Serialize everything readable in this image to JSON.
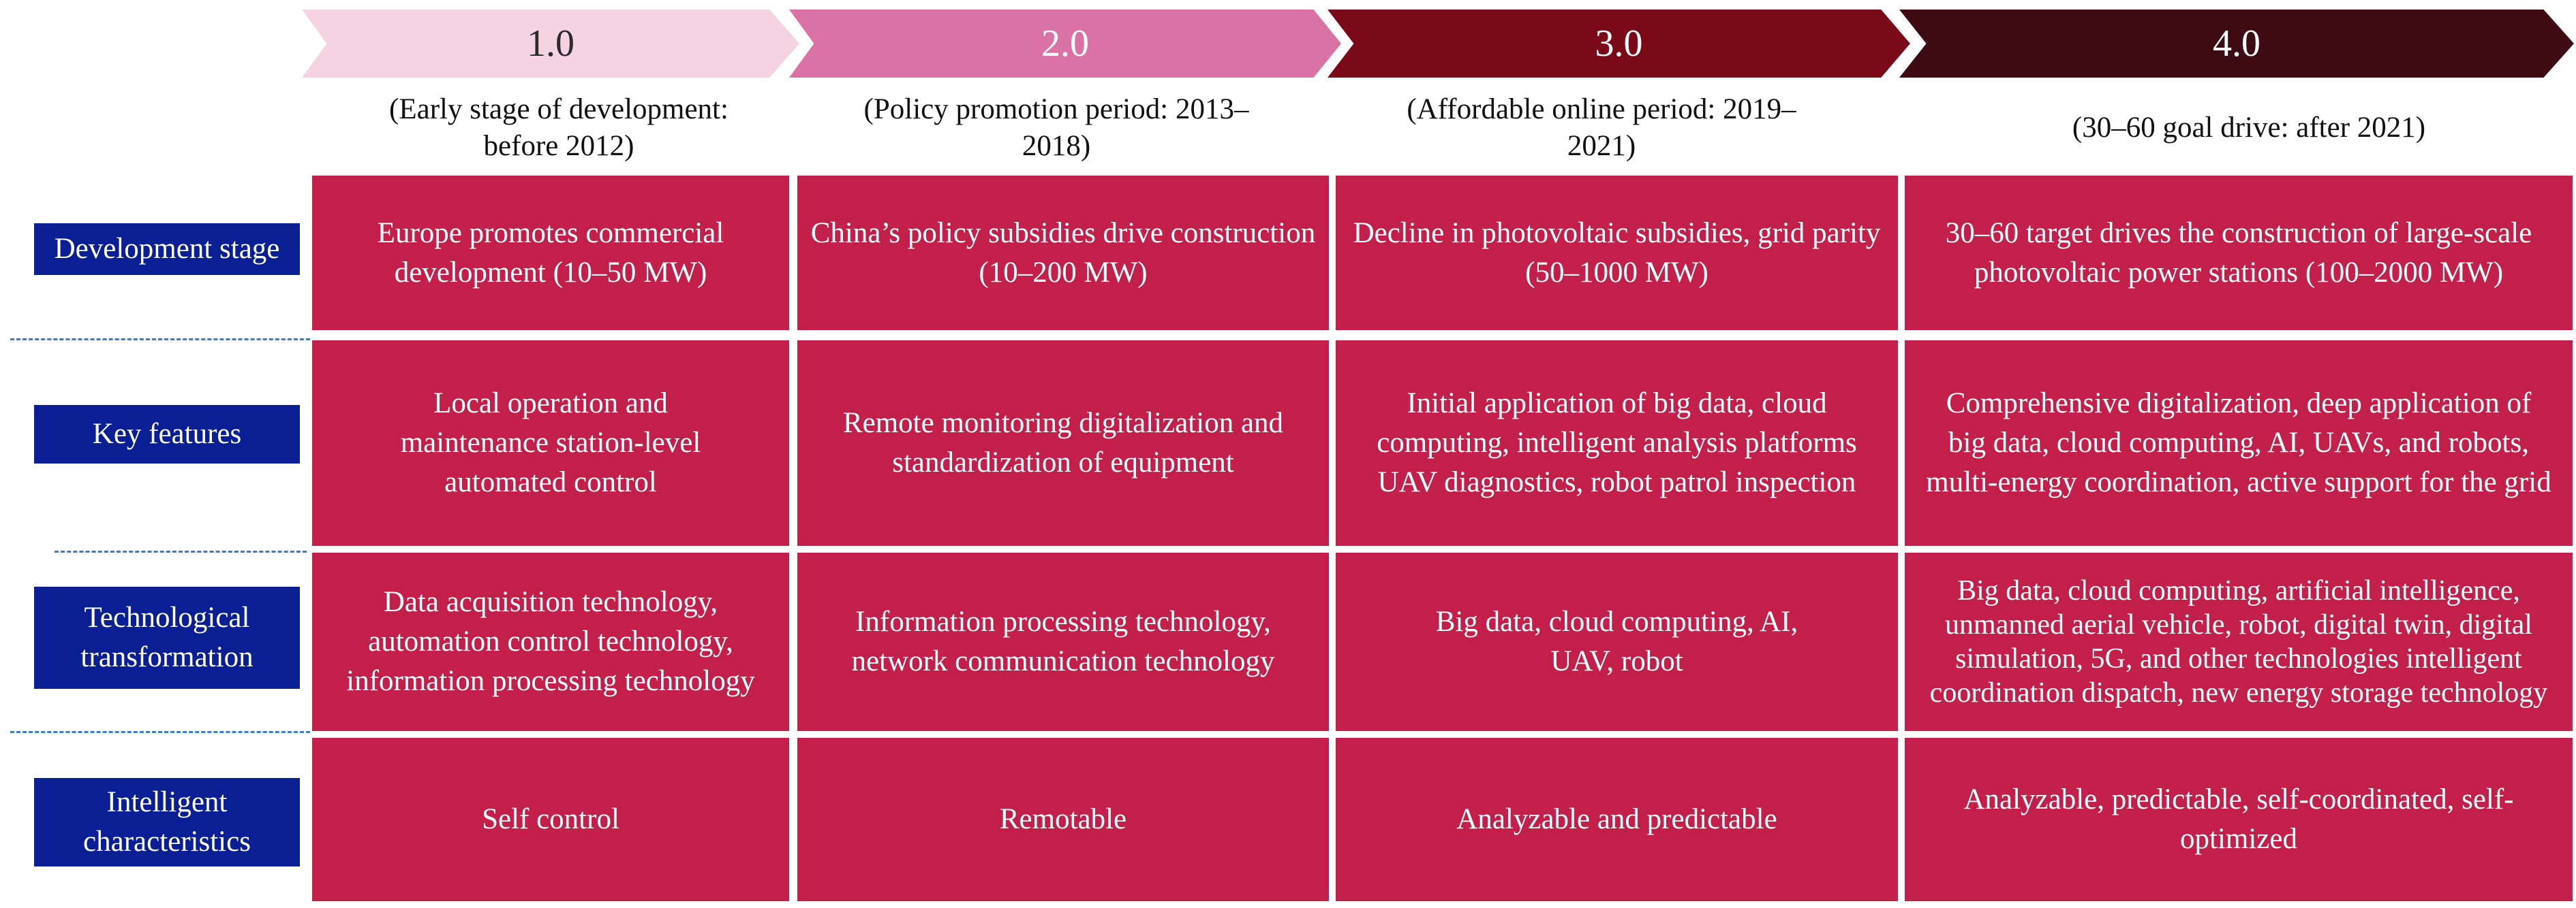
{
  "stages": [
    {
      "version": "1.0",
      "period": "(Early stage of development: before 2012)"
    },
    {
      "version": "2.0",
      "period": "(Policy promotion period: 2013–2018)"
    },
    {
      "version": "3.0",
      "period": "(Affordable online period: 2019–2021)"
    },
    {
      "version": "4.0",
      "period": "(30–60 goal drive: after 2021)"
    }
  ],
  "rows": [
    {
      "label": "Development stage"
    },
    {
      "label": "Key features"
    },
    {
      "label": "Technological transformation"
    },
    {
      "label": "Intelligent characteristics"
    }
  ],
  "cells": [
    [
      "Europe promotes commercial development (10–50 MW)",
      "China’s policy subsidies drive construction (10–200 MW)",
      "Decline in photovoltaic subsidies, grid parity (50–1000 MW)",
      "30–60 target drives the construction of large-scale photovoltaic power stations (100–2000 MW)"
    ],
    [
      "Local operation and maintenance station-level automated control",
      "Remote monitoring digitalization and standardization of equipment",
      "Initial application of big data, cloud computing, intelligent analysis platforms UAV diagnostics, robot patrol inspection",
      "Comprehensive digitalization, deep application of big data, cloud computing, AI, UAVs, and robots, multi-energy coordination, active support for the grid"
    ],
    [
      "Data acquisition technology, automation control technology, information processing technology",
      "Information processing technology, network communication technology",
      "Big data, cloud computing, AI, UAV, robot",
      "Big data, cloud computing, artificial intelligence, unmanned aerial vehicle, robot, digital twin, digital simulation, 5G, and other technologies intelligent coordination dispatch, new energy storage technology"
    ],
    [
      "Self control",
      "Remotable",
      "Analyzable and predictable",
      "Analyzable, predictable, self-coordinated, self-optimized"
    ]
  ],
  "colors": {
    "stage1": "#f6d3e1",
    "stage2": "#da72a5",
    "stage3": "#7a0a18",
    "stage4": "#3f0b13",
    "cell": "#c2204a",
    "label": "#0a1f93",
    "divider": "#3a7bd5"
  }
}
